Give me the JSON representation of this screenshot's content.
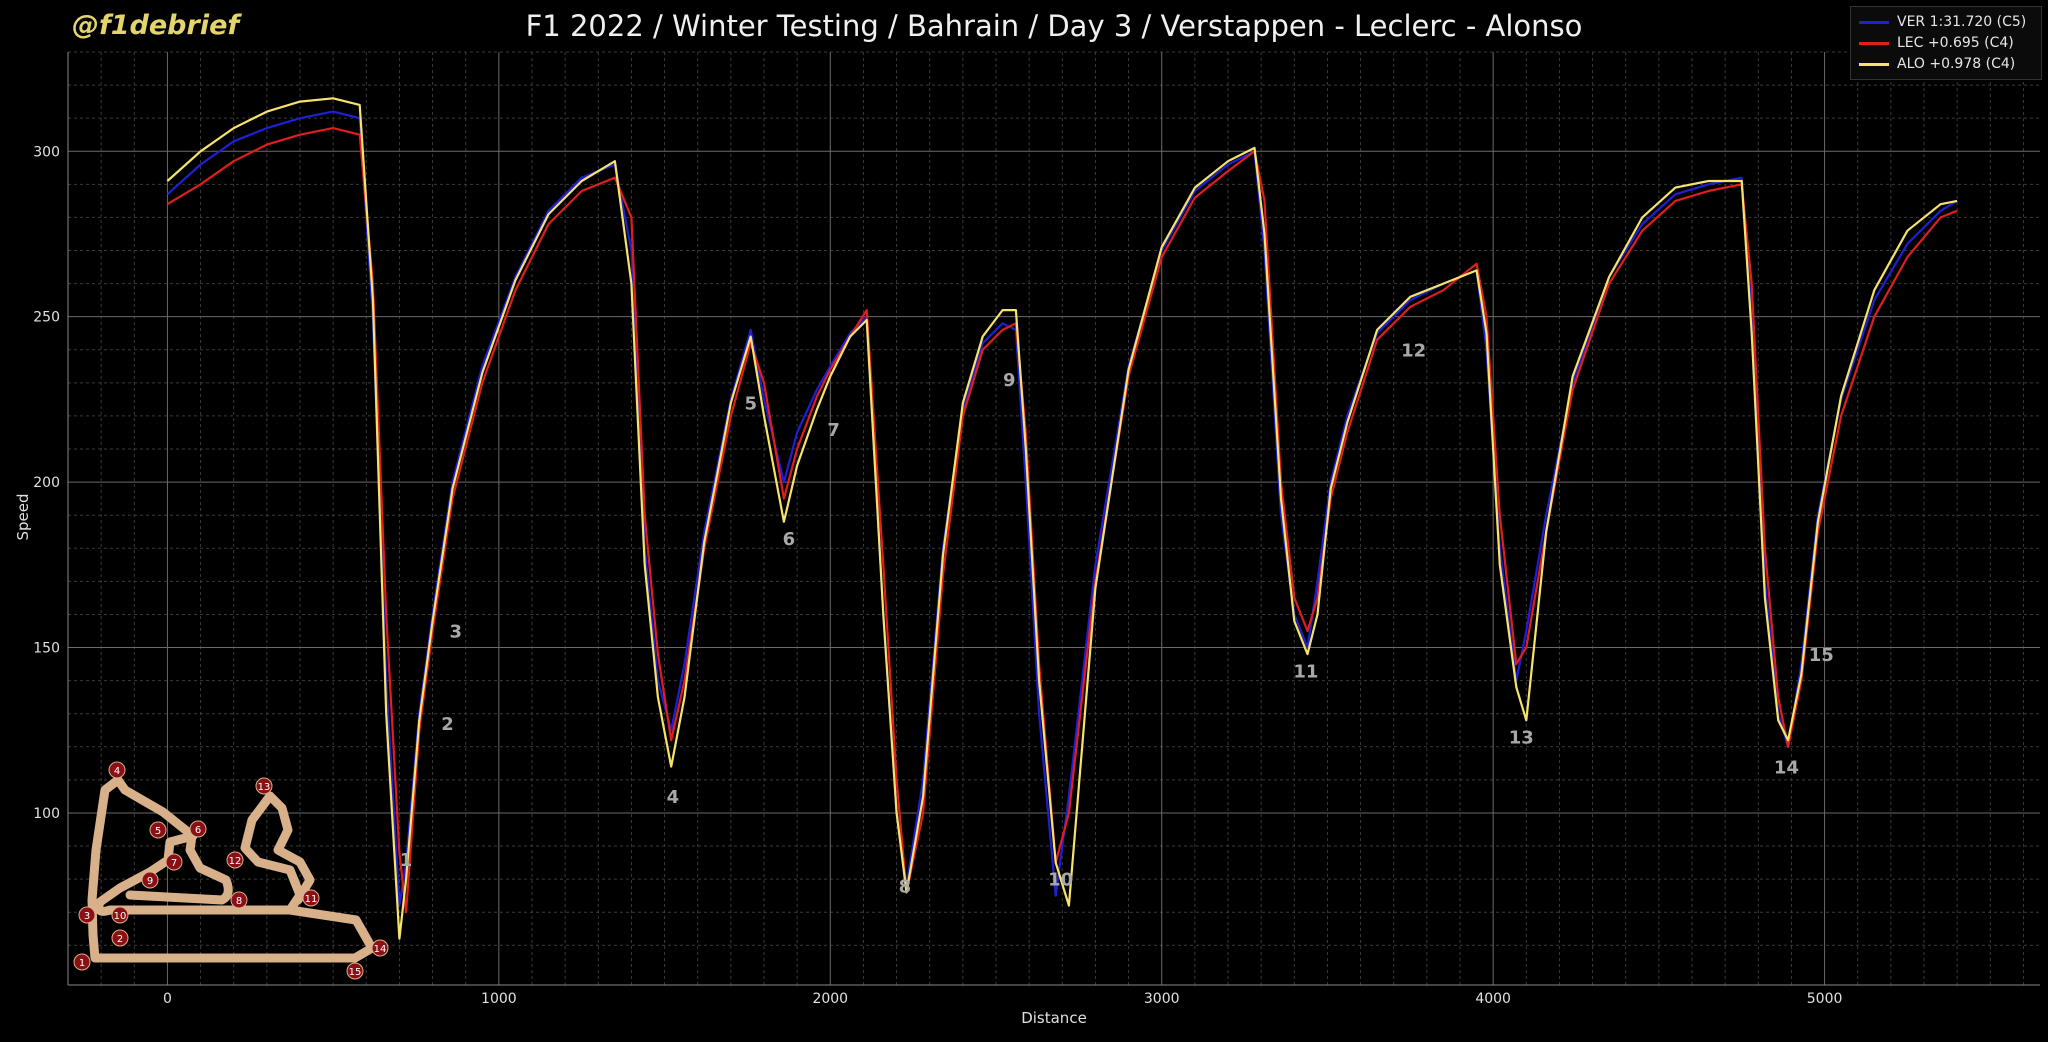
{
  "watermark": "@f1debrief",
  "chart_data": {
    "type": "line",
    "title": "F1 2022 / Winter Testing / Bahrain / Day 3 / Verstappen - Leclerc - Alonso",
    "xlabel": "Distance",
    "ylabel": "Speed",
    "xlim": [
      -300,
      5650
    ],
    "ylim": [
      48,
      330
    ],
    "xticks": [
      0,
      1000,
      2000,
      3000,
      4000,
      5000
    ],
    "yticks": [
      100,
      150,
      200,
      250,
      300
    ],
    "grid": true,
    "legend_position": "top-right",
    "colors": {
      "VER": "#1f1fd6",
      "LEC": "#e01e1e",
      "ALO": "#f5e36b"
    },
    "series": [
      {
        "name": "VER 1:31.720 (C5)",
        "key": "VER",
        "x": [
          0,
          100,
          200,
          300,
          400,
          500,
          580,
          620,
          660,
          700,
          720,
          760,
          800,
          860,
          950,
          1050,
          1150,
          1250,
          1350,
          1400,
          1440,
          1480,
          1520,
          1560,
          1620,
          1700,
          1760,
          1800,
          1860,
          1900,
          1960,
          2000,
          2060,
          2110,
          2160,
          2200,
          2230,
          2280,
          2340,
          2400,
          2460,
          2520,
          2560,
          2590,
          2630,
          2680,
          2720,
          2800,
          2900,
          3000,
          3100,
          3200,
          3280,
          3310,
          3360,
          3400,
          3440,
          3470,
          3510,
          3560,
          3650,
          3750,
          3850,
          3950,
          3980,
          4020,
          4070,
          4100,
          4160,
          4240,
          4350,
          4450,
          4550,
          4650,
          4750,
          4780,
          4820,
          4860,
          4890,
          4930,
          4980,
          5050,
          5150,
          5250,
          5350,
          5400
        ],
        "y": [
          287,
          296,
          303,
          307,
          310,
          312,
          310,
          250,
          140,
          72,
          85,
          130,
          160,
          200,
          235,
          262,
          282,
          292,
          296,
          270,
          180,
          140,
          125,
          145,
          185,
          225,
          246,
          225,
          200,
          215,
          228,
          235,
          245,
          250,
          160,
          100,
          78,
          110,
          180,
          222,
          242,
          248,
          246,
          200,
          130,
          75,
          105,
          175,
          235,
          270,
          288,
          296,
          300,
          270,
          190,
          160,
          150,
          170,
          200,
          220,
          245,
          255,
          260,
          264,
          240,
          180,
          140,
          155,
          190,
          230,
          262,
          278,
          287,
          290,
          292,
          250,
          170,
          130,
          120,
          145,
          190,
          225,
          255,
          272,
          282,
          285
        ]
      },
      {
        "name": "LEC +0.695 (C4)",
        "key": "LEC",
        "x": [
          0,
          100,
          200,
          300,
          400,
          500,
          580,
          620,
          660,
          700,
          720,
          760,
          800,
          860,
          950,
          1050,
          1150,
          1250,
          1350,
          1400,
          1440,
          1480,
          1520,
          1560,
          1620,
          1700,
          1760,
          1800,
          1860,
          1900,
          1960,
          2000,
          2060,
          2110,
          2160,
          2200,
          2230,
          2280,
          2340,
          2400,
          2460,
          2520,
          2560,
          2590,
          2630,
          2680,
          2720,
          2800,
          2900,
          3000,
          3100,
          3200,
          3280,
          3310,
          3360,
          3400,
          3440,
          3470,
          3510,
          3560,
          3650,
          3750,
          3850,
          3950,
          3980,
          4020,
          4070,
          4100,
          4160,
          4240,
          4350,
          4450,
          4550,
          4650,
          4750,
          4780,
          4820,
          4860,
          4890,
          4930,
          4980,
          5050,
          5150,
          5250,
          5350,
          5400
        ],
        "y": [
          284,
          290,
          297,
          302,
          305,
          307,
          305,
          260,
          160,
          88,
          70,
          125,
          155,
          195,
          230,
          258,
          278,
          288,
          292,
          280,
          190,
          148,
          122,
          140,
          180,
          220,
          242,
          230,
          195,
          210,
          226,
          234,
          244,
          252,
          175,
          110,
          76,
          100,
          172,
          220,
          240,
          246,
          248,
          215,
          145,
          85,
          100,
          170,
          232,
          268,
          286,
          294,
          300,
          285,
          200,
          165,
          155,
          165,
          195,
          215,
          243,
          253,
          258,
          266,
          250,
          190,
          145,
          150,
          185,
          228,
          260,
          276,
          285,
          288,
          290,
          260,
          180,
          135,
          120,
          140,
          185,
          220,
          250,
          268,
          280,
          282
        ]
      },
      {
        "name": "ALO +0.978 (C4)",
        "key": "ALO",
        "x": [
          0,
          100,
          200,
          300,
          400,
          500,
          580,
          620,
          660,
          700,
          720,
          760,
          800,
          860,
          950,
          1050,
          1150,
          1250,
          1350,
          1400,
          1440,
          1480,
          1520,
          1560,
          1620,
          1700,
          1760,
          1800,
          1860,
          1900,
          1960,
          2000,
          2060,
          2110,
          2160,
          2200,
          2230,
          2280,
          2340,
          2400,
          2460,
          2520,
          2560,
          2590,
          2630,
          2680,
          2720,
          2800,
          2900,
          3000,
          3100,
          3200,
          3280,
          3310,
          3360,
          3400,
          3440,
          3470,
          3510,
          3560,
          3650,
          3750,
          3850,
          3950,
          3980,
          4020,
          4070,
          4100,
          4160,
          4240,
          4350,
          4450,
          4550,
          4650,
          4750,
          4780,
          4820,
          4860,
          4890,
          4930,
          4980,
          5050,
          5150,
          5250,
          5350,
          5400
        ],
        "y": [
          291,
          300,
          307,
          312,
          315,
          316,
          314,
          255,
          130,
          62,
          80,
          128,
          158,
          198,
          233,
          261,
          281,
          291,
          297,
          260,
          175,
          135,
          114,
          135,
          182,
          224,
          244,
          220,
          188,
          205,
          222,
          232,
          244,
          249,
          160,
          100,
          76,
          105,
          178,
          224,
          244,
          252,
          252,
          210,
          140,
          85,
          72,
          168,
          234,
          271,
          289,
          297,
          301,
          275,
          195,
          158,
          148,
          160,
          198,
          218,
          246,
          256,
          260,
          264,
          245,
          175,
          138,
          128,
          185,
          232,
          262,
          280,
          289,
          291,
          291,
          245,
          165,
          128,
          122,
          142,
          188,
          226,
          258,
          276,
          284,
          285
        ]
      }
    ],
    "annotations": [
      {
        "text": "1",
        "x": 720,
        "y": 84
      },
      {
        "text": "2",
        "x": 845,
        "y": 125
      },
      {
        "text": "3",
        "x": 870,
        "y": 153
      },
      {
        "text": "4",
        "x": 1525,
        "y": 103
      },
      {
        "text": "5",
        "x": 1760,
        "y": 222
      },
      {
        "text": "6",
        "x": 1875,
        "y": 181
      },
      {
        "text": "7",
        "x": 2010,
        "y": 214
      },
      {
        "text": "8",
        "x": 2225,
        "y": 76
      },
      {
        "text": "9",
        "x": 2540,
        "y": 229
      },
      {
        "text": "10",
        "x": 2695,
        "y": 78
      },
      {
        "text": "11",
        "x": 3435,
        "y": 141
      },
      {
        "text": "12",
        "x": 3760,
        "y": 238
      },
      {
        "text": "13",
        "x": 4085,
        "y": 121
      },
      {
        "text": "14",
        "x": 4885,
        "y": 112
      },
      {
        "text": "15",
        "x": 4990,
        "y": 146
      }
    ],
    "track_map": {
      "corners": [
        "1",
        "2",
        "3",
        "4",
        "5",
        "6",
        "7",
        "8",
        "9",
        "10",
        "11",
        "12",
        "13",
        "14",
        "15"
      ]
    }
  }
}
